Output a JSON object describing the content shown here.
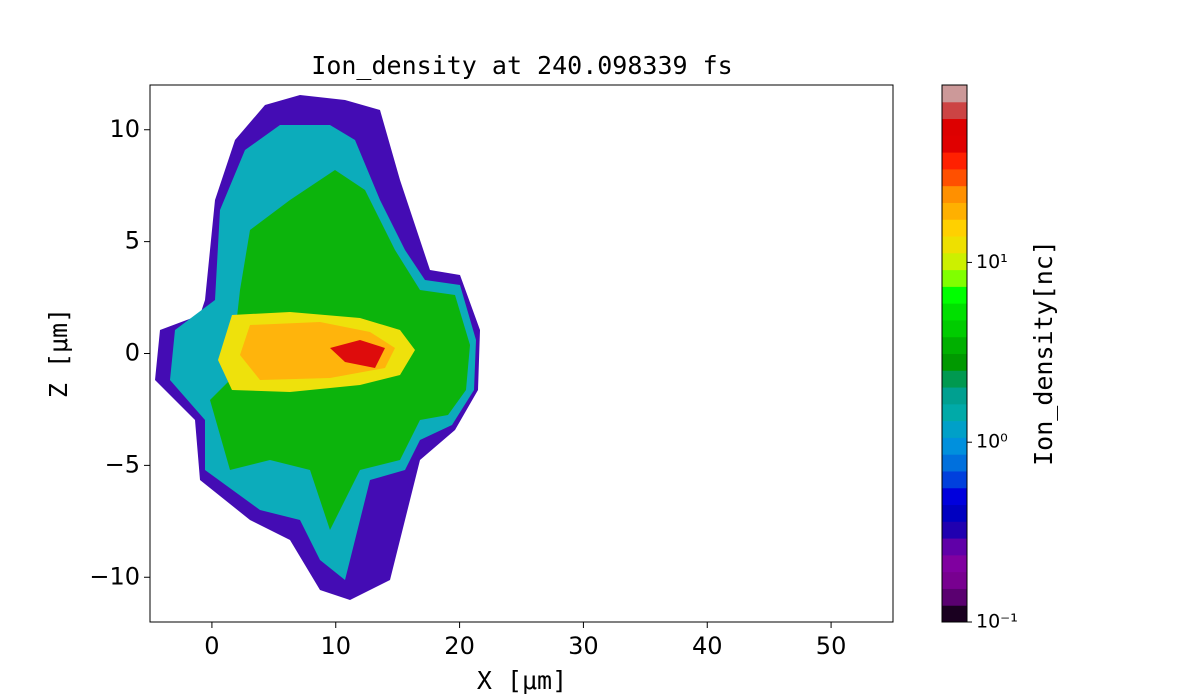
{
  "chart_data": {
    "type": "heatmap",
    "title": "Ion_density at 240.098339 fs",
    "x_label": "X [μm]",
    "y_label": "Z [μm]",
    "xlim": [
      -5,
      55
    ],
    "xticks": [
      0,
      10,
      20,
      30,
      40,
      50
    ],
    "ylim": [
      -12,
      12
    ],
    "yticks": [
      {
        "value": -10,
        "label": "−10"
      },
      {
        "value": -5,
        "label": "−5"
      },
      0,
      5,
      10
    ],
    "colorbar": {
      "label": "Ion_density[nc]",
      "log_scale": true,
      "lim": [
        0.1,
        97
      ],
      "ticks": [
        {
          "value": 0.1,
          "label": "10⁻¹"
        },
        {
          "value": 1,
          "label": "10⁰"
        },
        {
          "value": 10,
          "label": "10¹"
        }
      ],
      "colors": [
        "#1a0020",
        "#5a0070",
        "#780090",
        "#8000a0",
        "#6000a8",
        "#2000b0",
        "#0000c0",
        "#0000dd",
        "#0040dd",
        "#0070dd",
        "#0090dd",
        "#00a0c8",
        "#00aaa8",
        "#00a090",
        "#009950",
        "#009900",
        "#00b000",
        "#00cc00",
        "#00e000",
        "#00ff00",
        "#80ff00",
        "#ccf000",
        "#eee000",
        "#ffd000",
        "#ffb000",
        "#ff9000",
        "#ff5000",
        "#ff2000",
        "#e00000",
        "#dd0000",
        "#cc4444",
        "#cc9999"
      ]
    }
  }
}
